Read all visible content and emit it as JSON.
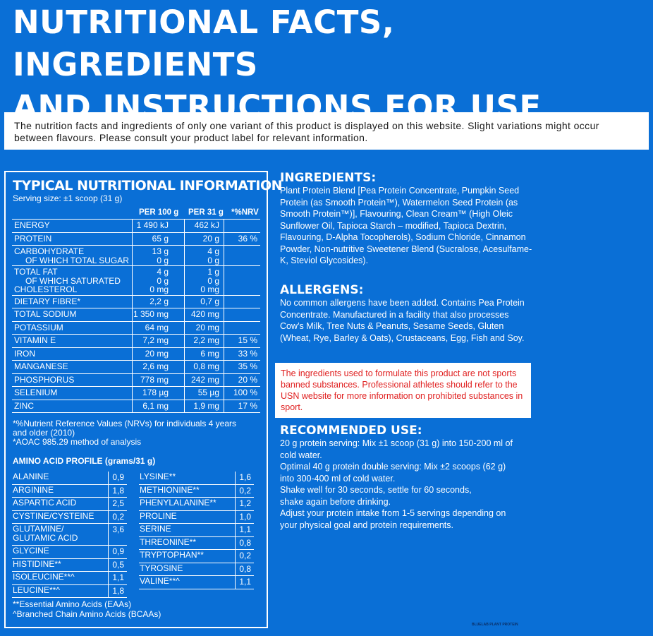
{
  "header": {
    "title_line1": "NUTRITIONAL FACTS, INGREDIENTS",
    "title_line2": "AND INSTRUCTIONS FOR USE"
  },
  "notice": "The nutrition facts and ingredients of only one variant of this product is displayed on this website. Slight variations might occur between flavours. Please consult your product label for relevant information.",
  "nutrition": {
    "title": "TYPICAL NUTRITIONAL INFORMATION",
    "serving": "Serving size: ±1 scoop (31 g)",
    "headers": [
      "PER 100 g",
      "PER 31 g",
      "*%NRV"
    ],
    "rows": [
      {
        "label": [
          "ENERGY"
        ],
        "per100": [
          "1 490 kJ"
        ],
        "per31": [
          "462 kJ"
        ],
        "nrv": [
          ""
        ]
      },
      {
        "label": [
          "PROTEIN"
        ],
        "per100": [
          "65 g"
        ],
        "per31": [
          "20 g"
        ],
        "nrv": [
          "36 %"
        ]
      },
      {
        "label": [
          "CARBOHYDRATE",
          "OF WHICH TOTAL SUGAR"
        ],
        "per100": [
          "13 g",
          "0 g"
        ],
        "per31": [
          "4 g",
          "0 g"
        ],
        "nrv": [
          ""
        ]
      },
      {
        "label": [
          "TOTAL FAT",
          "OF WHICH SATURATED",
          "CHOLESTEROL"
        ],
        "per100": [
          "4 g",
          "0 g",
          "0 mg"
        ],
        "per31": [
          "1 g",
          "0 g",
          "0 mg"
        ],
        "nrv": [
          ""
        ]
      },
      {
        "label": [
          "DIETARY FIBRE*"
        ],
        "per100": [
          "2,2 g"
        ],
        "per31": [
          "0,7 g"
        ],
        "nrv": [
          ""
        ]
      },
      {
        "label": [
          "TOTAL SODIUM"
        ],
        "per100": [
          "1 350 mg"
        ],
        "per31": [
          "420 mg"
        ],
        "nrv": [
          ""
        ]
      },
      {
        "label": [
          "POTASSIUM"
        ],
        "per100": [
          "64 mg"
        ],
        "per31": [
          "20 mg"
        ],
        "nrv": [
          ""
        ]
      },
      {
        "label": [
          "VITAMIN E"
        ],
        "per100": [
          "7,2 mg"
        ],
        "per31": [
          "2,2 mg"
        ],
        "nrv": [
          "15 %"
        ]
      },
      {
        "label": [
          "IRON"
        ],
        "per100": [
          "20 mg"
        ],
        "per31": [
          "6 mg"
        ],
        "nrv": [
          "33 %"
        ]
      },
      {
        "label": [
          "MANGANESE"
        ],
        "per100": [
          "2,6 mg"
        ],
        "per31": [
          "0,8 mg"
        ],
        "nrv": [
          "35 %"
        ]
      },
      {
        "label": [
          "PHOSPHORUS"
        ],
        "per100": [
          "778 mg"
        ],
        "per31": [
          "242 mg"
        ],
        "nrv": [
          "20 %"
        ]
      },
      {
        "label": [
          "SELENIUM"
        ],
        "per100": [
          "178 µg"
        ],
        "per31": [
          "55 µg"
        ],
        "nrv": [
          "100 %"
        ]
      },
      {
        "label": [
          "ZINC"
        ],
        "per100": [
          "6,1 mg"
        ],
        "per31": [
          "1,9 mg"
        ],
        "nrv": [
          "17 %"
        ]
      }
    ],
    "footnote1": "*%Nutrient Reference Values (NRVs) for individuals 4 years and older (2010)",
    "footnote2": "*AOAC 985.29 method of analysis"
  },
  "amino": {
    "title": "AMINO ACID PROFILE (grams/31 g)",
    "left": [
      {
        "name": [
          "ALANINE"
        ],
        "value": "0,9"
      },
      {
        "name": [
          "ARGININE"
        ],
        "value": "1,8"
      },
      {
        "name": [
          "ASPARTIC ACID"
        ],
        "value": "2,5"
      },
      {
        "name": [
          "CYSTINE/CYSTEINE"
        ],
        "value": "0,2"
      },
      {
        "name": [
          "GLUTAMINE/",
          "GLUTAMIC ACID"
        ],
        "value": "3,6"
      },
      {
        "name": [
          "GLYCINE"
        ],
        "value": "0,9"
      },
      {
        "name": [
          "HISTIDINE**"
        ],
        "value": "0,5"
      },
      {
        "name": [
          "ISOLEUCINE**^"
        ],
        "value": "1,1"
      },
      {
        "name": [
          "LEUCINE**^"
        ],
        "value": "1,8"
      }
    ],
    "right": [
      {
        "name": [
          "LYSINE**"
        ],
        "value": "1,6"
      },
      {
        "name": [
          "METHIONINE**"
        ],
        "value": "0,2"
      },
      {
        "name": [
          "PHENYLALANINE**"
        ],
        "value": "1,2"
      },
      {
        "name": [
          "PROLINE"
        ],
        "value": "1,0"
      },
      {
        "name": [
          "SERINE"
        ],
        "value": "1,1"
      },
      {
        "name": [
          "THREONINE**"
        ],
        "value": "0,8"
      },
      {
        "name": [
          "TRYPTOPHAN**"
        ],
        "value": "0,2"
      },
      {
        "name": [
          "TYROSINE"
        ],
        "value": "0,8"
      },
      {
        "name": [
          "VALINE**^"
        ],
        "value": "1,1"
      }
    ],
    "footnote1": "**Essential Amino Acids (EAAs)",
    "footnote2": "^Branched Chain Amino Acids (BCAAs)"
  },
  "ingredients": {
    "title": "INGREDIENTS:",
    "text": "Plant Protein Blend [Pea Protein Concentrate, Pumpkin Seed Protein (as Smooth Protein™), Watermelon Seed Protein (as Smooth Protein™)], Flavouring, Clean Cream™ (High Oleic Sunflower Oil, Tapioca Starch – modified, Tapioca Dextrin, Flavouring, D-Alpha Tocopherols), Sodium Chloride, Cinnamon Powder, Non-nutritive Sweetener Blend (Sucralose, Acesulfame-K, Steviol Glycosides)."
  },
  "allergens": {
    "title": "ALLERGENS:",
    "text": "No common allergens have been added. Contains Pea Protein Concentrate. Manufactured in a facility that also processes Cow’s Milk, Tree Nuts & Peanuts, Sesame Seeds, Gluten (Wheat, Rye, Barley & Oats), Crustaceans, Egg, Fish and Soy."
  },
  "warning": "The ingredients used to formulate this product are not sports banned substances. Professional athletes should refer to the USN website for more information on prohibited substances in sport.",
  "recommended": {
    "title": "RECOMMENDED USE:",
    "lines": [
      "20 g protein serving: Mix ±1  scoop (31 g) into 150-200 ml of",
      "cold water.",
      "Optimal 40 g protein double serving: Mix ±2 scoops (62 g)",
      "into 300-400 ml of cold water.",
      "Shake well for 30 seconds, settle for 60 seconds,",
      "shake again before drinking.",
      "Adjust your protein intake from  1-5 servings depending on",
      "your physical goal and protein requirements."
    ]
  },
  "code": "BLUELAB PLANT PROTEIN",
  "colors": {
    "background": "#0a6fd6",
    "warning_text": "#e02020",
    "code_text": "#0b2f66"
  }
}
